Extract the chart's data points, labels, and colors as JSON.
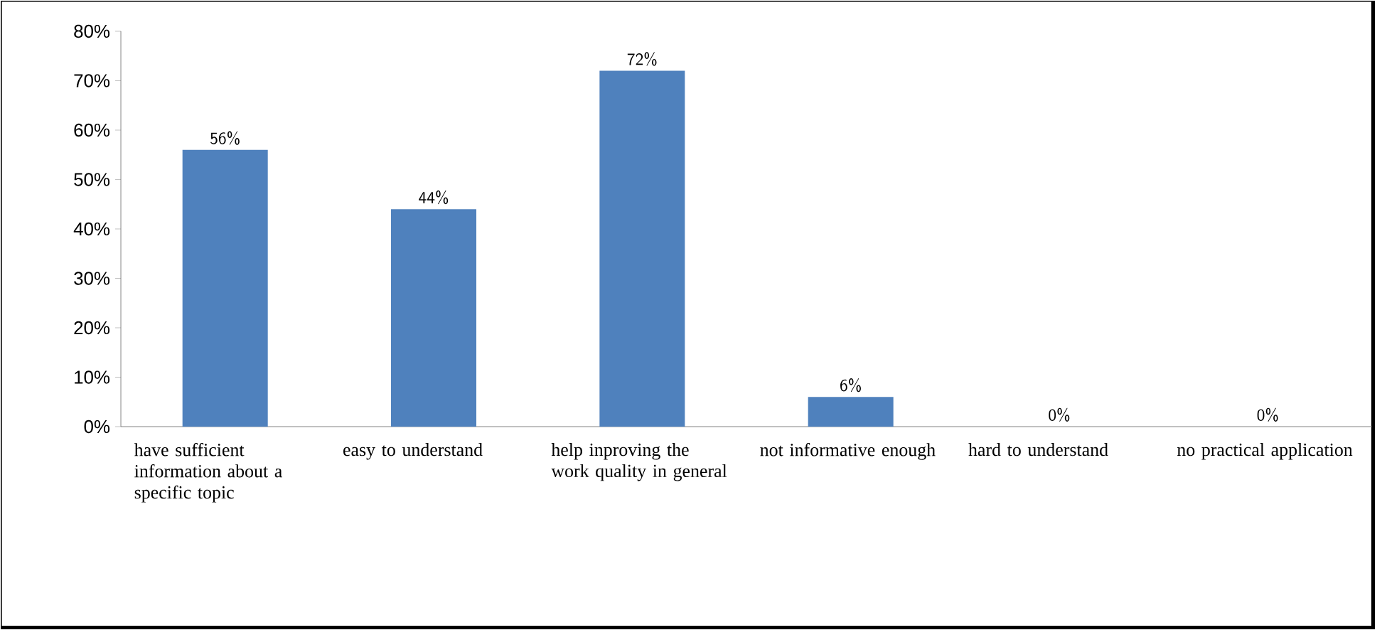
{
  "chart_data": {
    "type": "bar",
    "categories": [
      "have sufficient information about a specific topic",
      "easy to understand",
      "help inproving the work quality in general",
      "not informative enough",
      "hard to understand",
      "no practical application"
    ],
    "values": [
      56,
      44,
      72,
      6,
      0,
      0
    ],
    "value_labels": [
      "56%",
      "44%",
      "72%",
      "6%",
      "0%",
      "0%"
    ],
    "color": "#4f81bd",
    "ylim": [
      0,
      80
    ],
    "yticks": [
      {
        "value": 0,
        "label": "0%"
      },
      {
        "value": 10,
        "label": "10%"
      },
      {
        "value": 20,
        "label": "20%"
      },
      {
        "value": 30,
        "label": "30%"
      },
      {
        "value": 40,
        "label": "40%"
      },
      {
        "value": 50,
        "label": "50%"
      },
      {
        "value": 60,
        "label": "60%"
      },
      {
        "value": 70,
        "label": "70%"
      },
      {
        "value": 80,
        "label": "80%"
      }
    ],
    "grid": false
  }
}
